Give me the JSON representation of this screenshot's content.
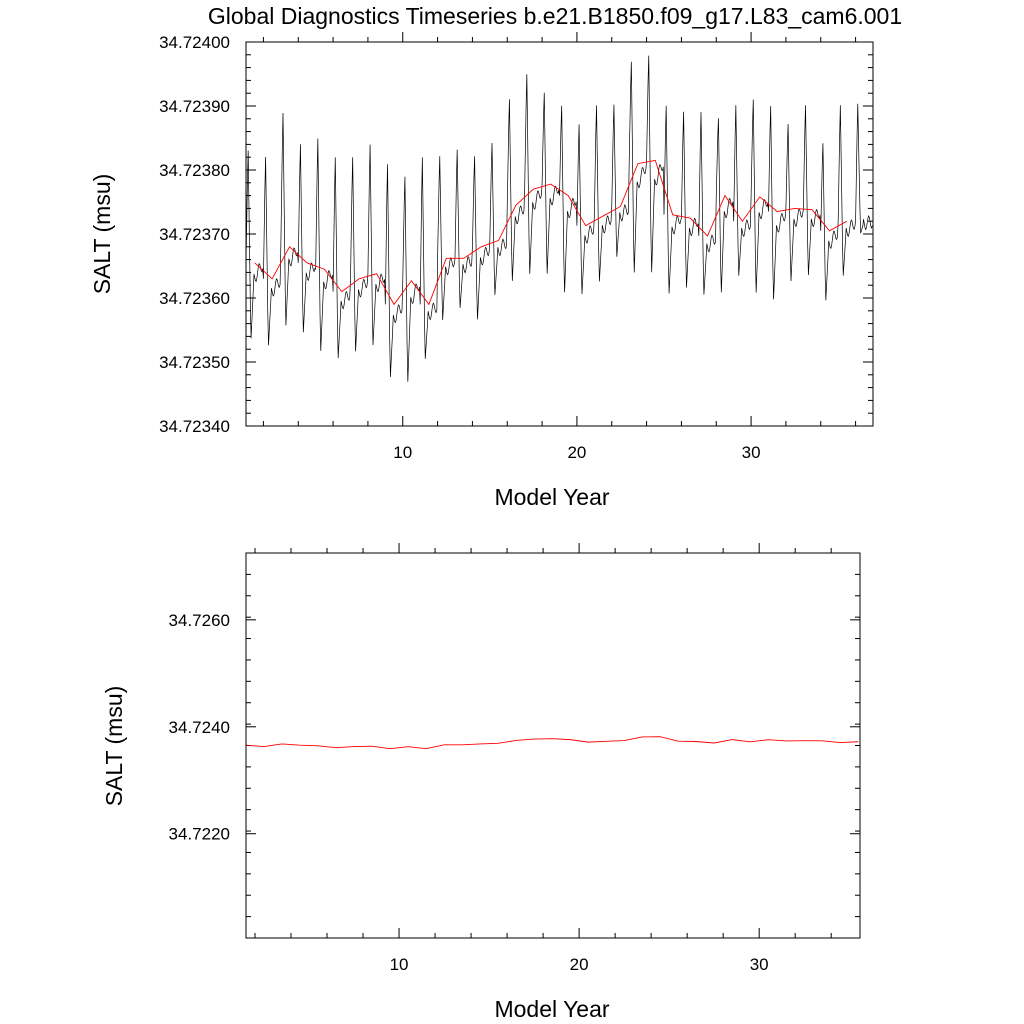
{
  "title": "Global Diagnostics Timeseries b.e21.B1850.f09_g17.L83_cam6.001",
  "colors": {
    "monthly": "#000000",
    "annual": "#ff0000"
  },
  "chart_data": [
    {
      "type": "line",
      "title": "Global Diagnostics Timeseries b.e21.B1850.f09_g17.L83_cam6.001",
      "xlabel": "Model Year",
      "ylabel": "SALT (msu)",
      "xlim": [
        1,
        37
      ],
      "ylim": [
        34.7234,
        34.724
      ],
      "xticks": [
        10,
        20,
        30
      ],
      "xtick_labels": [
        "10",
        "20",
        "30"
      ],
      "yticks": [
        34.7234,
        34.7235,
        34.7236,
        34.7237,
        34.7238,
        34.7239,
        34.724
      ],
      "ytick_labels": [
        "34.72340",
        "34.72350",
        "34.72360",
        "34.72370",
        "34.72380",
        "34.72390",
        "34.72400"
      ],
      "grid": false,
      "legend": "none",
      "series": [
        {
          "kind": "annual",
          "x": [
            1.5,
            2.5,
            3.5,
            4.5,
            5.5,
            6.5,
            7.5,
            8.5,
            9.5,
            10.5,
            11.5,
            12.5,
            13.5,
            14.5,
            15.5,
            16.5,
            17.5,
            18.5,
            19.5,
            20.5,
            21.5,
            22.5,
            23.5,
            24.5,
            25.5,
            26.5,
            27.5,
            28.5,
            29.5,
            30.5,
            31.5,
            32.5,
            33.5,
            34.5,
            35.5
          ],
          "values": [
            34.723655,
            34.72363,
            34.72368,
            34.723655,
            34.723645,
            34.72361,
            34.72363,
            34.723638,
            34.72359,
            34.723627,
            34.72359,
            34.723662,
            34.723662,
            34.72368,
            34.72369,
            34.723745,
            34.72377,
            34.723778,
            34.72376,
            34.723713,
            34.723728,
            34.723743,
            34.72381,
            34.723815,
            34.72373,
            34.723725,
            34.723697,
            34.72376,
            34.72372,
            34.723758,
            34.723735,
            34.72374,
            34.723738,
            34.723705,
            34.72372
          ]
        },
        {
          "kind": "monthly",
          "cycle_peaks": [
            34.72384,
            34.72383,
            34.7239,
            34.72385,
            34.72386,
            34.72383,
            34.72383,
            34.72385,
            34.72382,
            34.7238,
            34.72383,
            34.72383,
            34.72384,
            34.72383,
            34.72385,
            34.72392,
            34.72396,
            34.72393,
            34.72391,
            34.72388,
            34.72391,
            34.72391,
            34.72398,
            34.72399,
            34.72391,
            34.7239,
            34.7239,
            34.72389,
            34.72391,
            34.72392,
            34.72391,
            34.72388,
            34.72391,
            34.72385,
            34.72391,
            34.72391
          ],
          "cycle_troughs": [
            34.72353,
            34.72352,
            34.72355,
            34.72354,
            34.72351,
            34.7235,
            34.72351,
            34.72352,
            34.72347,
            34.72346,
            34.7235,
            34.72356,
            34.72358,
            34.72356,
            34.7236,
            34.72362,
            34.72363,
            34.72363,
            34.7236,
            34.7236,
            34.72362,
            34.72366,
            34.72363,
            34.72363,
            34.7236,
            34.72361,
            34.7236,
            34.7236,
            34.72363,
            34.7236,
            34.72359,
            34.72362,
            34.72363,
            34.72359,
            34.72363,
            34.7237
          ]
        }
      ]
    },
    {
      "type": "line",
      "title": "",
      "xlabel": "Model Year",
      "ylabel": "SALT (msu)",
      "xlim": [
        1.5,
        35.6
      ],
      "ylim": [
        34.72005,
        34.72725
      ],
      "xticks": [
        10,
        20,
        30
      ],
      "xtick_labels": [
        "10",
        "20",
        "30"
      ],
      "yticks": [
        34.722,
        34.724,
        34.726
      ],
      "ytick_labels": [
        "34.7220",
        "34.7240",
        "34.7260"
      ],
      "grid": false,
      "legend": "none",
      "series": [
        {
          "kind": "annual",
          "x": [
            1.5,
            2.5,
            3.5,
            4.5,
            5.5,
            6.5,
            7.5,
            8.5,
            9.5,
            10.5,
            11.5,
            12.5,
            13.5,
            14.5,
            15.5,
            16.5,
            17.5,
            18.5,
            19.5,
            20.5,
            21.5,
            22.5,
            23.5,
            24.5,
            25.5,
            26.5,
            27.5,
            28.5,
            29.5,
            30.5,
            31.5,
            32.5,
            33.5,
            34.5,
            35.5
          ],
          "values": [
            34.723655,
            34.72363,
            34.72368,
            34.723655,
            34.723645,
            34.72361,
            34.72363,
            34.723638,
            34.72359,
            34.723627,
            34.72359,
            34.723662,
            34.723662,
            34.72368,
            34.72369,
            34.723745,
            34.72377,
            34.723778,
            34.72376,
            34.723713,
            34.723728,
            34.723743,
            34.72381,
            34.723815,
            34.72373,
            34.723725,
            34.723697,
            34.72376,
            34.72372,
            34.723758,
            34.723735,
            34.72374,
            34.723738,
            34.723705,
            34.72372
          ]
        }
      ]
    }
  ]
}
